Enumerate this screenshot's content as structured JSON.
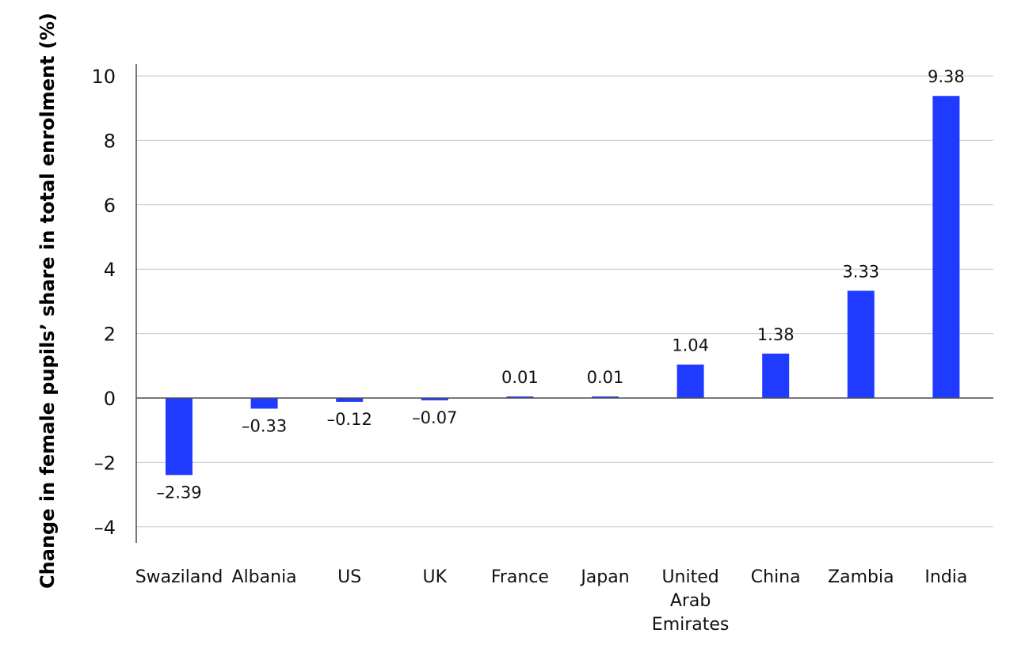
{
  "chart_data": {
    "type": "bar",
    "title": "",
    "xlabel": "",
    "ylabel": "Change in female pupils’ share in total enrolment (%)",
    "ylim": [
      -4.5,
      10.3
    ],
    "yticks": [
      10,
      8,
      6,
      4,
      2,
      0,
      -2,
      -4
    ],
    "ytick_labels": [
      "10",
      "8",
      "6",
      "4",
      "2",
      "0",
      "–2",
      "–4"
    ],
    "grid": true,
    "legend": "none",
    "bar_color": "#1f3bff",
    "categories": [
      [
        "Swaziland"
      ],
      [
        "Albania"
      ],
      [
        "US"
      ],
      [
        "UK"
      ],
      [
        "France"
      ],
      [
        "Japan"
      ],
      [
        "United",
        "Arab",
        "Emirates"
      ],
      [
        "China"
      ],
      [
        "Zambia"
      ],
      [
        "India"
      ]
    ],
    "values": [
      -2.39,
      -0.33,
      -0.12,
      -0.07,
      0.01,
      0.01,
      1.04,
      1.38,
      3.33,
      9.38
    ],
    "value_labels": [
      "–2.39",
      "–0.33",
      "–0.12",
      "–0.07",
      "0.01",
      "0.01",
      "1.04",
      "1.38",
      "3.33",
      "9.38"
    ]
  }
}
